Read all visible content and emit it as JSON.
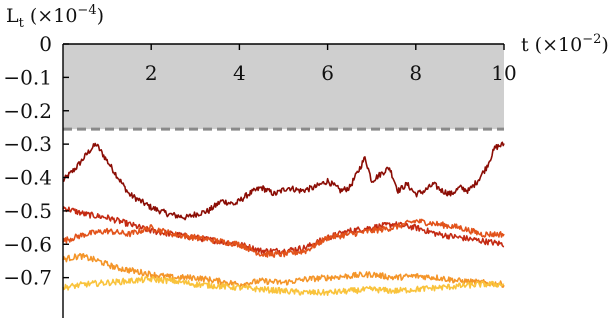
{
  "chart_data": {
    "type": "line",
    "title": "",
    "ylabel": {
      "base": "L",
      "subscript": "t",
      "prefix": " (×10",
      "exponent": "−4",
      "suffix": ")"
    },
    "xlabel": {
      "base": "t",
      "prefix": " (×10",
      "exponent": "−2",
      "suffix": ")"
    },
    "xlim": [
      0,
      10
    ],
    "ylim": [
      -0.77,
      0
    ],
    "x_ticks": [
      2,
      4,
      6,
      8,
      10
    ],
    "x_tick_labels": [
      "2",
      "4",
      "6",
      "8",
      "10"
    ],
    "y_ticks": [
      0,
      -0.1,
      -0.2,
      -0.3,
      -0.4,
      -0.5,
      -0.6,
      -0.7
    ],
    "y_tick_labels": [
      "0",
      "−0.1",
      "−0.2",
      "−0.3",
      "−0.4",
      "−0.5",
      "−0.6",
      "−0.7"
    ],
    "grid": false,
    "shaded_region": {
      "y_from": 0,
      "y_to": -0.255,
      "color": "#cfcfcf"
    },
    "threshold_line": {
      "y": -0.255,
      "style": "dashed",
      "color": "#8a8a8a"
    },
    "series": [
      {
        "color": "#8b0d05",
        "x": [
          0,
          0.3,
          0.6,
          0.75,
          0.9,
          1.2,
          1.5,
          2.0,
          2.4,
          2.8,
          3.0,
          3.3,
          3.6,
          3.9,
          4.2,
          4.5,
          4.8,
          5.1,
          5.4,
          5.7,
          6.0,
          6.3,
          6.5,
          6.7,
          6.85,
          7.0,
          7.2,
          7.4,
          7.6,
          7.8,
          8.0,
          8.2,
          8.4,
          8.6,
          8.8,
          9.0,
          9.2,
          9.4,
          9.6,
          9.8,
          10.0
        ],
        "y": [
          -0.41,
          -0.37,
          -0.32,
          -0.3,
          -0.33,
          -0.39,
          -0.45,
          -0.49,
          -0.51,
          -0.52,
          -0.51,
          -0.5,
          -0.47,
          -0.48,
          -0.45,
          -0.43,
          -0.45,
          -0.43,
          -0.44,
          -0.43,
          -0.41,
          -0.44,
          -0.43,
          -0.38,
          -0.34,
          -0.41,
          -0.39,
          -0.37,
          -0.44,
          -0.42,
          -0.45,
          -0.44,
          -0.42,
          -0.44,
          -0.45,
          -0.43,
          -0.44,
          -0.41,
          -0.37,
          -0.31,
          -0.3
        ]
      },
      {
        "color": "#c42a12",
        "x": [
          0,
          0.5,
          1.0,
          1.5,
          2.0,
          2.5,
          3.0,
          3.5,
          4.0,
          4.5,
          5.0,
          5.5,
          6.0,
          6.5,
          7.0,
          7.5,
          8.0,
          8.5,
          9.0,
          9.5,
          10.0
        ],
        "y": [
          -0.49,
          -0.51,
          -0.52,
          -0.54,
          -0.56,
          -0.57,
          -0.58,
          -0.59,
          -0.6,
          -0.62,
          -0.62,
          -0.61,
          -0.58,
          -0.56,
          -0.55,
          -0.54,
          -0.55,
          -0.57,
          -0.58,
          -0.59,
          -0.6
        ]
      },
      {
        "color": "#e2531b",
        "x": [
          0,
          0.5,
          1.0,
          1.5,
          2.0,
          2.5,
          3.0,
          3.5,
          4.0,
          4.5,
          5.0,
          5.5,
          6.0,
          6.5,
          7.0,
          7.5,
          8.0,
          8.5,
          9.0,
          9.5,
          10.0
        ],
        "y": [
          -0.59,
          -0.57,
          -0.56,
          -0.57,
          -0.55,
          -0.57,
          -0.58,
          -0.59,
          -0.6,
          -0.63,
          -0.63,
          -0.62,
          -0.58,
          -0.57,
          -0.56,
          -0.55,
          -0.53,
          -0.54,
          -0.55,
          -0.57,
          -0.57
        ]
      },
      {
        "color": "#f49529",
        "x": [
          0,
          0.4,
          0.8,
          1.2,
          1.6,
          2.0,
          2.5,
          3.0,
          3.5,
          4.0,
          4.5,
          5.0,
          5.5,
          6.0,
          6.5,
          7.0,
          7.5,
          8.0,
          8.5,
          9.0,
          9.5,
          10.0
        ],
        "y": [
          -0.645,
          -0.635,
          -0.65,
          -0.67,
          -0.68,
          -0.69,
          -0.7,
          -0.7,
          -0.71,
          -0.72,
          -0.71,
          -0.715,
          -0.705,
          -0.7,
          -0.695,
          -0.69,
          -0.7,
          -0.695,
          -0.7,
          -0.71,
          -0.715,
          -0.72
        ]
      },
      {
        "color": "#f9c33c",
        "x": [
          0,
          0.5,
          1.0,
          1.5,
          2.0,
          2.5,
          3.0,
          3.5,
          4.0,
          4.5,
          5.0,
          5.5,
          6.0,
          6.5,
          7.0,
          7.5,
          8.0,
          8.5,
          9.0,
          9.5,
          10.0
        ],
        "y": [
          -0.73,
          -0.72,
          -0.715,
          -0.71,
          -0.705,
          -0.71,
          -0.72,
          -0.725,
          -0.73,
          -0.735,
          -0.74,
          -0.745,
          -0.745,
          -0.74,
          -0.735,
          -0.74,
          -0.735,
          -0.73,
          -0.725,
          -0.72,
          -0.72
        ]
      }
    ]
  }
}
